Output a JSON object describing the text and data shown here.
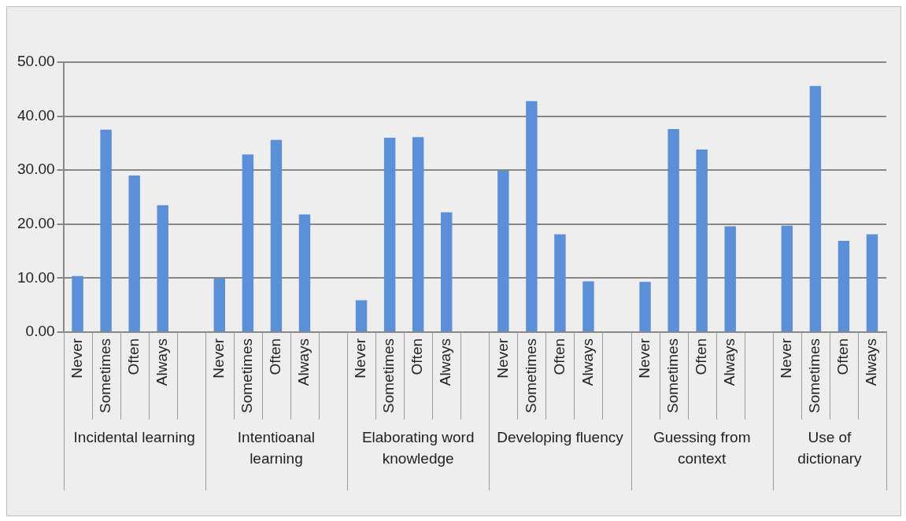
{
  "chart_data": {
    "type": "bar",
    "categories": [
      "Never",
      "Sometimes",
      "Often",
      "Always",
      null,
      "Never",
      "Sometimes",
      "Often",
      "Always",
      null,
      "Never",
      "Sometimes",
      "Often",
      "Always",
      null,
      "Never",
      "Sometimes",
      "Often",
      "Always",
      null,
      "Never",
      "Sometimes",
      "Often",
      "Always",
      null,
      "Never",
      "Sometimes",
      "Often",
      "Always"
    ],
    "values": [
      10.4,
      37.5,
      29.0,
      23.5,
      null,
      9.9,
      32.9,
      35.6,
      21.8,
      null,
      5.9,
      36.0,
      36.1,
      22.2,
      null,
      29.9,
      42.8,
      18.1,
      9.4,
      null,
      9.3,
      37.6,
      33.8,
      19.6,
      null,
      19.7,
      45.6,
      16.9,
      18.1
    ],
    "color": "#5b8fd8",
    "annotations": [
      "Incidental learning",
      "Intentioanal learning",
      "Elaborating word knowledge",
      "Developing fluency",
      "Guessing from context",
      "Use of dictionary"
    ],
    "ylim": [
      0,
      50
    ],
    "yticks": [
      {
        "value": 0,
        "label": "0.00"
      },
      {
        "value": 10,
        "label": "10.00"
      },
      {
        "value": 20,
        "label": "20.00"
      },
      {
        "value": 30,
        "label": "30.00"
      },
      {
        "value": 40,
        "label": "40.00"
      },
      {
        "value": 50,
        "label": "50.00"
      }
    ],
    "grid": "y",
    "legend": false
  }
}
